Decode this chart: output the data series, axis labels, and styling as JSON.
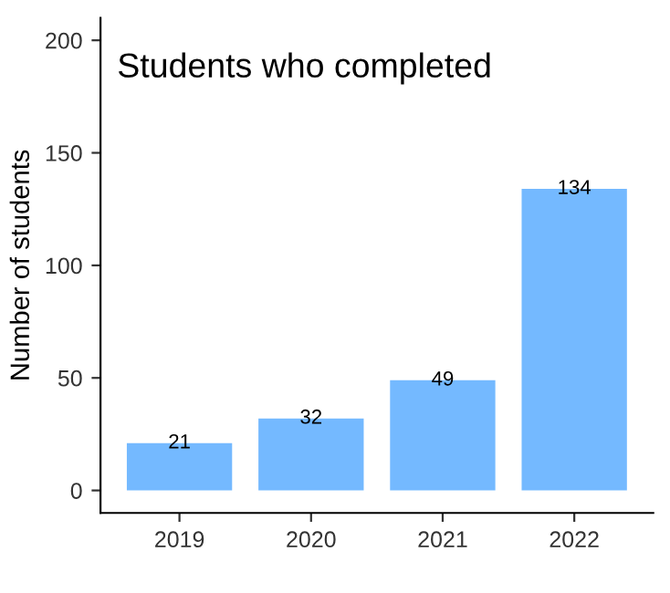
{
  "chart_data": {
    "type": "bar",
    "title": "Students who completed",
    "ylabel": "Number of students",
    "categories": [
      "2019",
      "2020",
      "2021",
      "2022"
    ],
    "values": [
      21,
      32,
      49,
      134
    ],
    "color": "#74b9ff",
    "ylim": [
      -10,
      210
    ],
    "yticks": [
      0,
      50,
      100,
      150,
      200
    ],
    "grid": false,
    "data_labels": true
  }
}
